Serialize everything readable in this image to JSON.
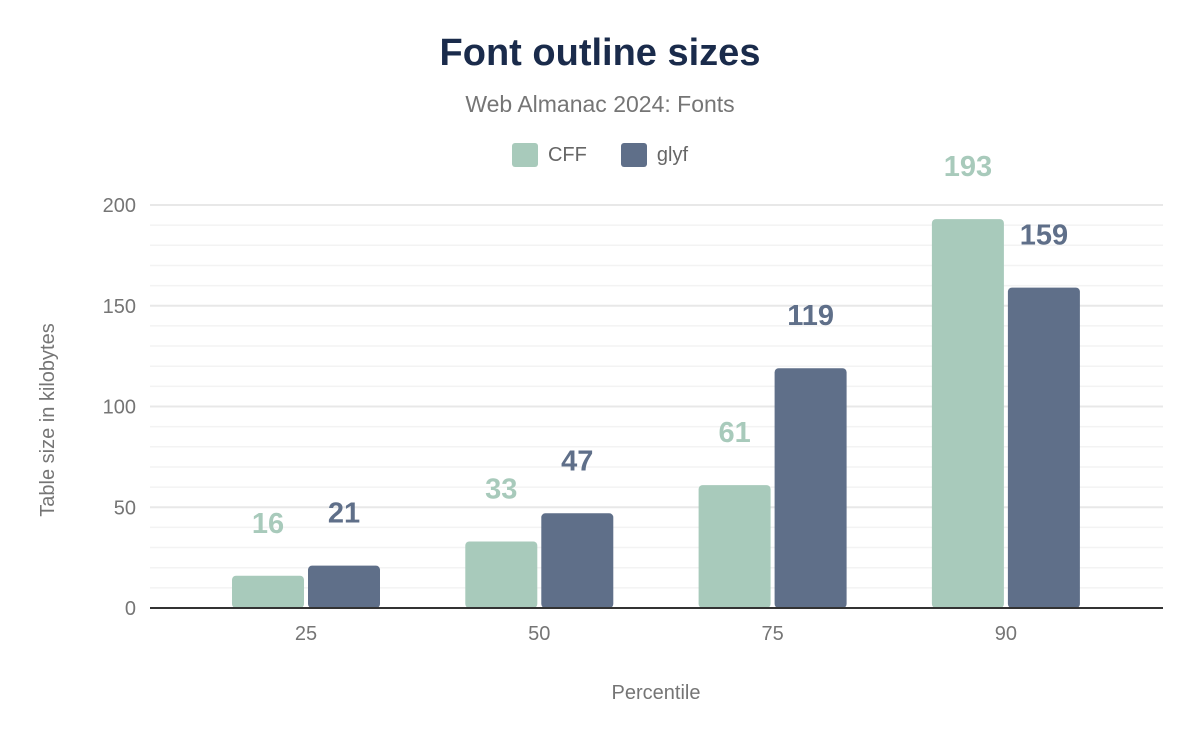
{
  "chart_data": {
    "type": "bar",
    "title": "Font outline sizes",
    "subtitle": "Web Almanac 2024: Fonts",
    "xlabel": "Percentile",
    "ylabel": "Table size in kilobytes",
    "categories": [
      "25",
      "50",
      "75",
      "90"
    ],
    "series": [
      {
        "name": "CFF",
        "color": "#a8cabb",
        "values": [
          16,
          33,
          61,
          193
        ]
      },
      {
        "name": "glyf",
        "color": "#5f6f89",
        "values": [
          21,
          47,
          119,
          159
        ]
      }
    ],
    "ylim": [
      0,
      200
    ],
    "yticks": [
      0,
      50,
      100,
      150,
      200
    ],
    "grid": true,
    "legend": "top-center"
  }
}
